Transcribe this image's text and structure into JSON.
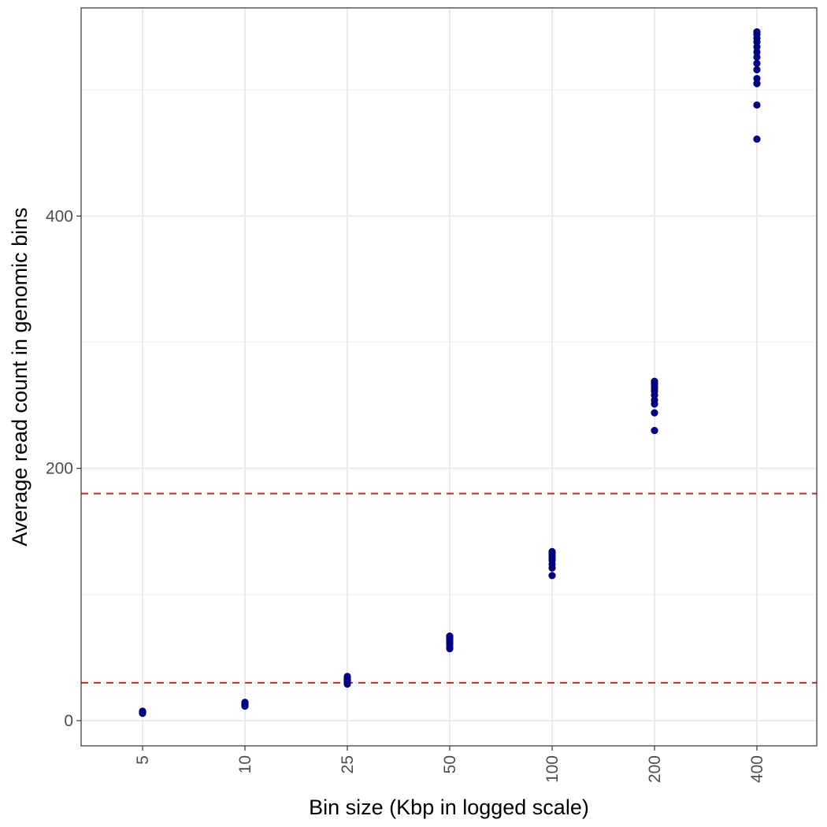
{
  "chart_data": {
    "type": "scatter",
    "title": "",
    "xlabel": "Bin size (Kbp in logged scale)",
    "ylabel": "Average read count in genomic bins",
    "x_scale": "categorical",
    "categories": [
      "5",
      "10",
      "25",
      "50",
      "100",
      "200",
      "400"
    ],
    "y_ticks": [
      0,
      200,
      400
    ],
    "ylim": [
      -20,
      565
    ],
    "grid": true,
    "point_color": "#000080",
    "reference_line_color": "#e41a1c",
    "reference_lines": [
      {
        "y": 30
      },
      {
        "y": 180
      }
    ],
    "series": [
      {
        "points": [
          {
            "x": "5",
            "y": 6.0
          },
          {
            "x": "5",
            "y": 6.5
          },
          {
            "x": "5",
            "y": 7.0
          },
          {
            "x": "5",
            "y": 7.2
          },
          {
            "x": "5",
            "y": 6.8
          },
          {
            "x": "5",
            "y": 5.8
          },
          {
            "x": "5",
            "y": 7.5
          },
          {
            "x": "10",
            "y": 12.0
          },
          {
            "x": "10",
            "y": 12.8
          },
          {
            "x": "10",
            "y": 13.5
          },
          {
            "x": "10",
            "y": 14.0
          },
          {
            "x": "10",
            "y": 11.5
          },
          {
            "x": "10",
            "y": 13.0
          },
          {
            "x": "10",
            "y": 14.5
          },
          {
            "x": "25",
            "y": 29.0
          },
          {
            "x": "25",
            "y": 30.5
          },
          {
            "x": "25",
            "y": 32.0
          },
          {
            "x": "25",
            "y": 33.0
          },
          {
            "x": "25",
            "y": 34.0
          },
          {
            "x": "25",
            "y": 35.0
          },
          {
            "x": "25",
            "y": 31.0
          },
          {
            "x": "50",
            "y": 57.0
          },
          {
            "x": "50",
            "y": 59.0
          },
          {
            "x": "50",
            "y": 61.0
          },
          {
            "x": "50",
            "y": 63.0
          },
          {
            "x": "50",
            "y": 64.0
          },
          {
            "x": "50",
            "y": 65.0
          },
          {
            "x": "50",
            "y": 66.0
          },
          {
            "x": "50",
            "y": 67.0
          },
          {
            "x": "100",
            "y": 115.0
          },
          {
            "x": "100",
            "y": 121.0
          },
          {
            "x": "100",
            "y": 124.0
          },
          {
            "x": "100",
            "y": 127.0
          },
          {
            "x": "100",
            "y": 129.0
          },
          {
            "x": "100",
            "y": 131.0
          },
          {
            "x": "100",
            "y": 133.0
          },
          {
            "x": "100",
            "y": 134.0
          },
          {
            "x": "200",
            "y": 230.0
          },
          {
            "x": "200",
            "y": 244.0
          },
          {
            "x": "200",
            "y": 251.0
          },
          {
            "x": "200",
            "y": 254.0
          },
          {
            "x": "200",
            "y": 258.0
          },
          {
            "x": "200",
            "y": 261.0
          },
          {
            "x": "200",
            "y": 263.0
          },
          {
            "x": "200",
            "y": 265.0
          },
          {
            "x": "200",
            "y": 267.0
          },
          {
            "x": "200",
            "y": 269.0
          },
          {
            "x": "400",
            "y": 461.0
          },
          {
            "x": "400",
            "y": 488.0
          },
          {
            "x": "400",
            "y": 505.0
          },
          {
            "x": "400",
            "y": 509.0
          },
          {
            "x": "400",
            "y": 516.0
          },
          {
            "x": "400",
            "y": 521.0
          },
          {
            "x": "400",
            "y": 526.0
          },
          {
            "x": "400",
            "y": 530.0
          },
          {
            "x": "400",
            "y": 534.0
          },
          {
            "x": "400",
            "y": 538.0
          },
          {
            "x": "400",
            "y": 541.0
          },
          {
            "x": "400",
            "y": 544.0
          },
          {
            "x": "400",
            "y": 546.0
          }
        ]
      }
    ]
  }
}
